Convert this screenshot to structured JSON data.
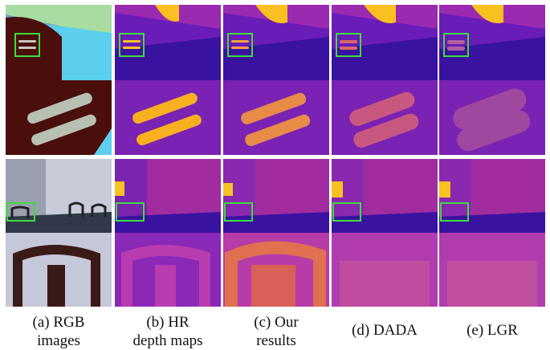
{
  "figure": {
    "columns": [
      {
        "key": "rgb",
        "caption_lines": [
          "(a) RGB",
          "images"
        ]
      },
      {
        "key": "hr",
        "caption_lines": [
          "(b) HR",
          "depth maps"
        ]
      },
      {
        "key": "ours",
        "caption_lines": [
          "(c) Our",
          "results"
        ]
      },
      {
        "key": "dada",
        "caption_lines": [
          "(d) DADA"
        ]
      },
      {
        "key": "lgr",
        "caption_lines": [
          "(e) LGR"
        ]
      }
    ]
  },
  "colors": {
    "highlight_box": "#3ddc3d",
    "depth_far": "#3a12a0",
    "depth_mid": "#9a2ab0",
    "depth_near": "#f07040",
    "depth_nearest": "#f8c020",
    "table_blue": "#5ccfee",
    "table_green": "#a8dca0",
    "chair_red": "#4a0f0c"
  }
}
